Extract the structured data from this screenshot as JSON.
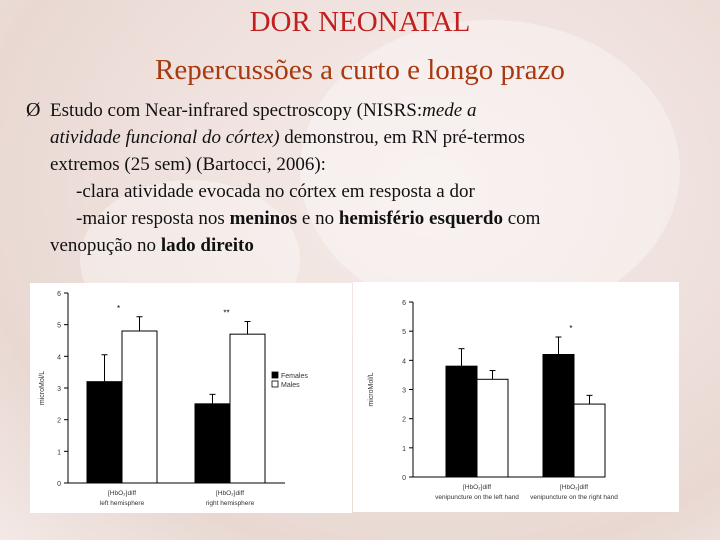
{
  "slide": {
    "title": "DOR NEONATAL",
    "subtitle": "Repercussões a curto e longo prazo",
    "bullet": {
      "arrow": "Ø",
      "line1_a": "Estudo com Near-infrared spectroscopy (NISRS:",
      "line1_b": "mede a",
      "line2_a": "atividade funcional do córtex)",
      "line2_b": " demonstrou, em RN pré-termos",
      "line3": "extremos (25 sem) (Bartocci, 2006):",
      "line4": "-clara atividade evocada no córtex em resposta a dor",
      "line5_a": "-maior resposta nos ",
      "line5_b": "meninos",
      "line5_c": " e no ",
      "line5_d": "hemisfério esquerdo",
      "line5_e": " com",
      "line6_a": "venopução no ",
      "line6_b": "lado direito"
    }
  },
  "chart_data": [
    {
      "type": "bar",
      "ylabel": "microMol/L",
      "ylim": [
        0,
        6
      ],
      "yticks": [
        0,
        1,
        2,
        3,
        4,
        5,
        6
      ],
      "categories": [
        {
          "line1": "[HbO₂]diff",
          "line2": "left hemisphere"
        },
        {
          "line1": "[HbO₂]diff",
          "line2": "right hemisphere"
        }
      ],
      "series": [
        {
          "name": "Females",
          "fill": "#000000",
          "values": [
            3.2,
            2.5
          ],
          "err": [
            0.85,
            0.3
          ]
        },
        {
          "name": "Males",
          "fill": "#ffffff",
          "values": [
            4.8,
            4.7
          ],
          "err": [
            0.45,
            0.4
          ]
        }
      ],
      "significance": [
        "*",
        "**"
      ],
      "legend": "right"
    },
    {
      "type": "bar",
      "ylabel": "microMol/L",
      "ylim": [
        0,
        6
      ],
      "yticks": [
        0,
        1,
        2,
        3,
        4,
        5,
        6
      ],
      "categories": [
        {
          "line1": "[HbO₂]diff",
          "line2": "venipuncture on the left hand"
        },
        {
          "line1": "[HbO₂]diff",
          "line2": "venipuncture on the right hand"
        }
      ],
      "series": [
        {
          "name": "",
          "fill": "#000000",
          "values": [
            3.8,
            4.2
          ],
          "err": [
            0.6,
            0.6
          ]
        },
        {
          "name": "",
          "fill": "#ffffff",
          "values": [
            3.35,
            2.5
          ],
          "err": [
            0.3,
            0.3
          ]
        }
      ],
      "significance": [
        "",
        "*"
      ]
    }
  ]
}
